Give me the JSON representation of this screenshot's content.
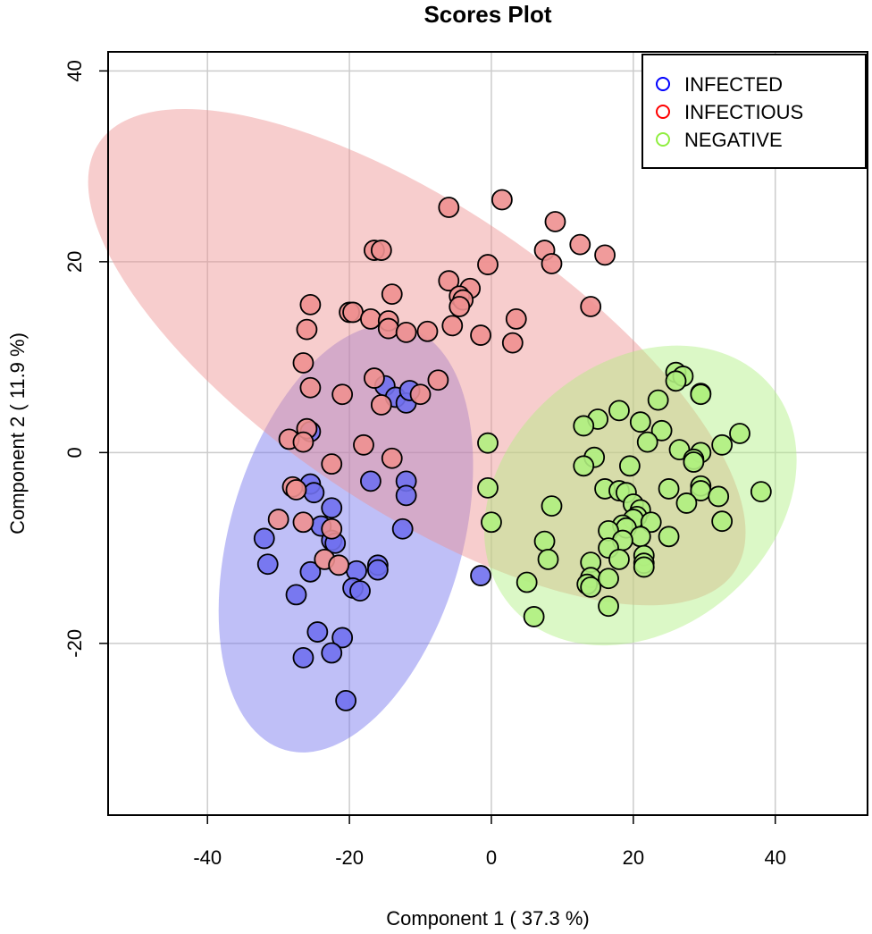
{
  "chart_data": {
    "type": "scatter",
    "title": "Scores Plot",
    "xlabel": "Component 1 ( 37.3 %)",
    "ylabel": "Component 2 ( 11.9 %)",
    "xlim": [
      -54,
      53
    ],
    "ylim": [
      -38,
      42
    ],
    "xticks": [
      -40,
      -20,
      0,
      20,
      40
    ],
    "yticks": [
      -20,
      0,
      20,
      40
    ],
    "grid": true,
    "legend_position": "top-right",
    "series": [
      {
        "name": "INFECTED",
        "color": "#0000ff",
        "fill": "#7070ee",
        "ellipse": {
          "cx": -20.5,
          "cy": -9.0,
          "rx": 31.0,
          "ry": 12.2,
          "angle_deg": -74
        },
        "points": [
          [
            -15,
            7
          ],
          [
            -13.5,
            5.8
          ],
          [
            -12,
            5.2
          ],
          [
            -11.5,
            6.5
          ],
          [
            -25.5,
            2.2
          ],
          [
            -25.5,
            -3.3
          ],
          [
            -25,
            -4.2
          ],
          [
            -17,
            -3
          ],
          [
            -12,
            -3
          ],
          [
            -12,
            -4.5
          ],
          [
            -22.5,
            -5.8
          ],
          [
            -24,
            -7.7
          ],
          [
            -12.5,
            -8
          ],
          [
            -22.5,
            -9.2
          ],
          [
            -22,
            -9.5
          ],
          [
            -32,
            -9
          ],
          [
            -31.5,
            -11.7
          ],
          [
            -25.5,
            -12.5
          ],
          [
            -19,
            -12.4
          ],
          [
            -16,
            -11.8
          ],
          [
            -16,
            -12.3
          ],
          [
            -19.5,
            -14.2
          ],
          [
            -18.5,
            -14.5
          ],
          [
            -27.5,
            -14.9
          ],
          [
            -24.5,
            -18.8
          ],
          [
            -21,
            -19.4
          ],
          [
            -26.5,
            -21.5
          ],
          [
            -22.5,
            -21
          ],
          [
            -20.5,
            -26
          ],
          [
            -1.5,
            -12.9
          ]
        ]
      },
      {
        "name": "INFECTIOUS",
        "color": "#ff0000",
        "fill": "#ee9090",
        "ellipse": {
          "cx": -10.5,
          "cy": 10.0,
          "rx": 54.0,
          "ry": 15.8,
          "angle_deg": 34
        },
        "points": [
          [
            1.5,
            26.5
          ],
          [
            -6,
            25.7
          ],
          [
            9,
            24.2
          ],
          [
            12.5,
            21.8
          ],
          [
            -16.5,
            21.2
          ],
          [
            -15.5,
            21.2
          ],
          [
            7.5,
            21.2
          ],
          [
            16,
            20.7
          ],
          [
            8.5,
            19.8
          ],
          [
            -0.5,
            19.7
          ],
          [
            -6,
            18
          ],
          [
            -3,
            17.2
          ],
          [
            -4.5,
            16.4
          ],
          [
            -14,
            16.6
          ],
          [
            -4,
            16
          ],
          [
            -4.5,
            15.3
          ],
          [
            -25.5,
            15.5
          ],
          [
            -20,
            14.7
          ],
          [
            -19.5,
            14.7
          ],
          [
            -17,
            14
          ],
          [
            -14.5,
            13.8
          ],
          [
            -14.5,
            13
          ],
          [
            -12,
            12.6
          ],
          [
            -9,
            12.7
          ],
          [
            -5.5,
            13.3
          ],
          [
            3.5,
            14
          ],
          [
            14,
            15.3
          ],
          [
            -26,
            12.9
          ],
          [
            -1.5,
            12.3
          ],
          [
            3,
            11.5
          ],
          [
            -26.5,
            9.4
          ],
          [
            -16.5,
            7.8
          ],
          [
            -7.5,
            7.6
          ],
          [
            -25.5,
            6.8
          ],
          [
            -21,
            6.1
          ],
          [
            -10,
            6.1
          ],
          [
            -15.5,
            5
          ],
          [
            -26,
            2.5
          ],
          [
            -28.5,
            1.4
          ],
          [
            -26.5,
            1.1
          ],
          [
            -18,
            0.8
          ],
          [
            -14,
            -0.6
          ],
          [
            -22.5,
            -1.2
          ],
          [
            -28,
            -3.6
          ],
          [
            -27.5,
            -3.9
          ],
          [
            -26.5,
            -7.3
          ],
          [
            -30,
            -7
          ],
          [
            -22.5,
            -8
          ],
          [
            -23.5,
            -11.2
          ],
          [
            -21.5,
            -11.8
          ]
        ]
      },
      {
        "name": "NEGATIVE",
        "color": "#90ee40",
        "fill": "#b0f080",
        "ellipse": {
          "cx": 21.0,
          "cy": -4.5,
          "rx": 24.0,
          "ry": 14.0,
          "angle_deg": -40
        },
        "points": [
          [
            26,
            8.4
          ],
          [
            27,
            8.0
          ],
          [
            26,
            7.5
          ],
          [
            29.5,
            6.2
          ],
          [
            29.5,
            6.1
          ],
          [
            23.5,
            5.5
          ],
          [
            18,
            4.4
          ],
          [
            15,
            3.5
          ],
          [
            21,
            3.2
          ],
          [
            13,
            2.8
          ],
          [
            24,
            2.3
          ],
          [
            35,
            2
          ],
          [
            22,
            1.1
          ],
          [
            -0.5,
            1
          ],
          [
            32.5,
            0.8
          ],
          [
            26.5,
            0.3
          ],
          [
            29.5,
            0
          ],
          [
            14.5,
            -0.5
          ],
          [
            28.5,
            -0.7
          ],
          [
            28.5,
            -1
          ],
          [
            13,
            -1.4
          ],
          [
            19.5,
            -1.4
          ],
          [
            -0.5,
            -3.7
          ],
          [
            16,
            -3.8
          ],
          [
            18,
            -4.0
          ],
          [
            25,
            -3.8
          ],
          [
            29.5,
            -3.5
          ],
          [
            19,
            -4.2
          ],
          [
            29.5,
            -4.0
          ],
          [
            32,
            -4.6
          ],
          [
            38,
            -4.1
          ],
          [
            20,
            -5.4
          ],
          [
            21,
            -6.0
          ],
          [
            27.5,
            -5.3
          ],
          [
            8.5,
            -5.6
          ],
          [
            20.5,
            -6.7
          ],
          [
            20,
            -7.0
          ],
          [
            0,
            -7.3
          ],
          [
            22.5,
            -7.3
          ],
          [
            32.5,
            -7.2
          ],
          [
            18.5,
            -7.6
          ],
          [
            19,
            -7.9
          ],
          [
            16.5,
            -8.2
          ],
          [
            21,
            -8.8
          ],
          [
            25,
            -8.8
          ],
          [
            18.5,
            -9.2
          ],
          [
            7.5,
            -9.3
          ],
          [
            16.5,
            -10.0
          ],
          [
            21.5,
            -10.8
          ],
          [
            8,
            -11.2
          ],
          [
            14,
            -11.5
          ],
          [
            18,
            -11.2
          ],
          [
            21.5,
            -11.6
          ],
          [
            21.5,
            -12.0
          ],
          [
            14,
            -13.1
          ],
          [
            16.5,
            -13.2
          ],
          [
            5,
            -13.6
          ],
          [
            13.5,
            -13.8
          ],
          [
            14,
            -14.1
          ],
          [
            16.5,
            -16.1
          ],
          [
            6,
            -17.2
          ]
        ]
      }
    ]
  }
}
